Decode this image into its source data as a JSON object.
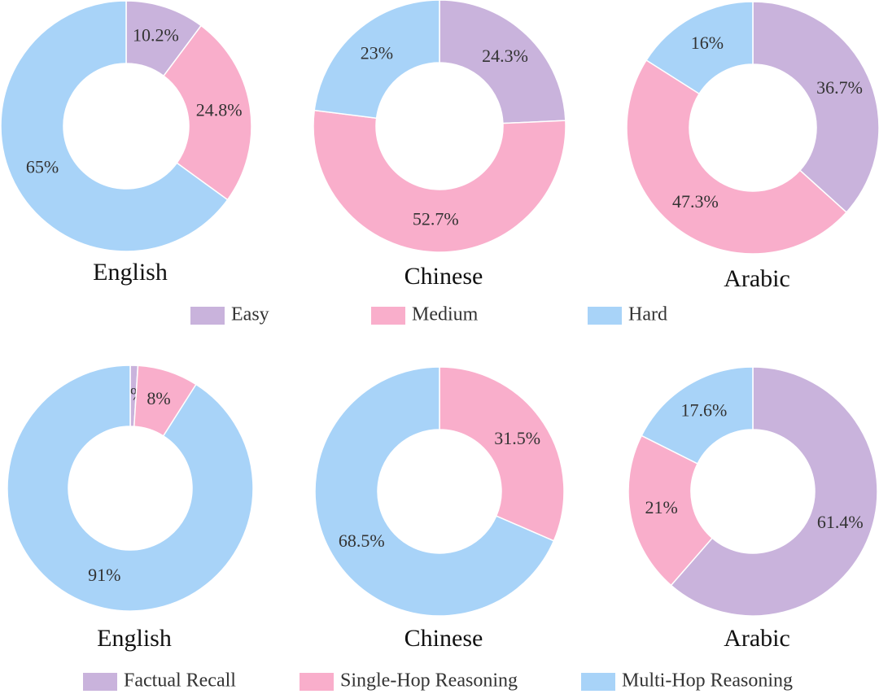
{
  "chart_data": [
    {
      "type": "donut",
      "title": "English",
      "categories": [
        "Easy",
        "Medium",
        "Hard"
      ],
      "colors": [
        "#c9b3dc",
        "#f9aecb",
        "#a8d3f8"
      ],
      "values": [
        10.2,
        24.8,
        65
      ],
      "value_labels": [
        "10.2%",
        "24.8%",
        "65%"
      ]
    },
    {
      "type": "donut",
      "title": "Chinese",
      "colors": [
        "#c9b3dc",
        "#f9aecb",
        "#a8d3f8"
      ],
      "values": [
        24.3,
        52.7,
        23
      ],
      "value_labels": [
        "24.3%",
        "52.7%",
        "23%"
      ]
    },
    {
      "type": "donut",
      "title": "Arabic",
      "colors": [
        "#c9b3dc",
        "#f9aecb",
        "#a8d3f8"
      ],
      "values": [
        36.7,
        47.3,
        16
      ],
      "value_labels": [
        "36.7%",
        "47.3%",
        "16%"
      ]
    },
    {
      "type": "donut",
      "title": "English",
      "categories": [
        "Factual Recall",
        "Single-Hop Reasoning",
        "Multi-Hop Reasoning"
      ],
      "colors": [
        "#c9b3dc",
        "#f9aecb",
        "#a8d3f8"
      ],
      "values": [
        1,
        8,
        91
      ],
      "value_labels": [
        "1%",
        "8%",
        "91%"
      ]
    },
    {
      "type": "donut",
      "title": "Chinese",
      "colors": [
        "#f9aecb",
        "#a8d3f8"
      ],
      "values": [
        31.5,
        68.5
      ],
      "value_labels": [
        "31.5%",
        "68.5%"
      ]
    },
    {
      "type": "donut",
      "title": "Arabic",
      "colors": [
        "#c9b3dc",
        "#f9aecb",
        "#a8d3f8"
      ],
      "values": [
        61.4,
        21,
        17.6
      ],
      "value_labels": [
        "61.4%",
        "21%",
        "17.6%"
      ]
    }
  ]
}
